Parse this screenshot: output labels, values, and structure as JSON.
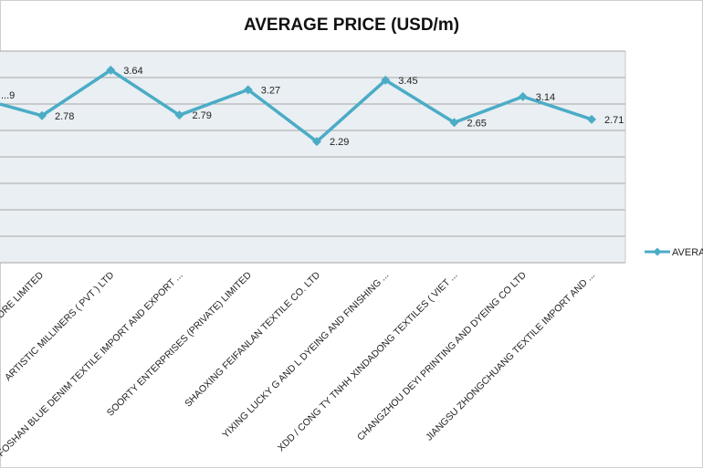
{
  "chart_data": {
    "type": "line",
    "title": "AVERAGE PRICE (USD/m)",
    "legend_position": "right",
    "grid": true,
    "categories": [
      "...ORE LIMITED",
      "ARTISTIC MILLINERS ( PVT ) LTD",
      "FOSHAN BLUE DENIM TEXTILE IMPORT AND EXPORT ...",
      "SOORTY ENTERPRISES (PRIVATE) LIMITED",
      "SHAOXING FEIFANLAN TEXTILE CO. LTD",
      "YIXING LUCKY G AND L DYEING AND FINISHING ...",
      "XDD / CONG TY TNHH XINDADONG TEXTILES ( VIET ...",
      "CHANGZHOU DEYI PRINTING AND DYEING CO LTD",
      "JIANGSU ZHONGCHUANG TEXTILE IMPORT AND ..."
    ],
    "series": [
      {
        "name": "AVERA...",
        "color": "#4bacc6",
        "values": [
          2.78,
          3.64,
          2.79,
          3.27,
          2.29,
          3.45,
          2.65,
          3.14,
          2.71
        ],
        "data_labels": [
          "2.78",
          "3.64",
          "2.79",
          "3.27",
          "2.29",
          "3.45",
          "2.65",
          "3.14",
          "2.71"
        ],
        "leading_point": {
          "value": 3.0,
          "label": "...9"
        }
      }
    ],
    "ylim": [
      0,
      4.0
    ],
    "ytick_step": 0.5
  },
  "colors": {
    "plot_background": "#e9eff3",
    "gridline": "#a6a6a6",
    "series": "#4bacc6"
  }
}
